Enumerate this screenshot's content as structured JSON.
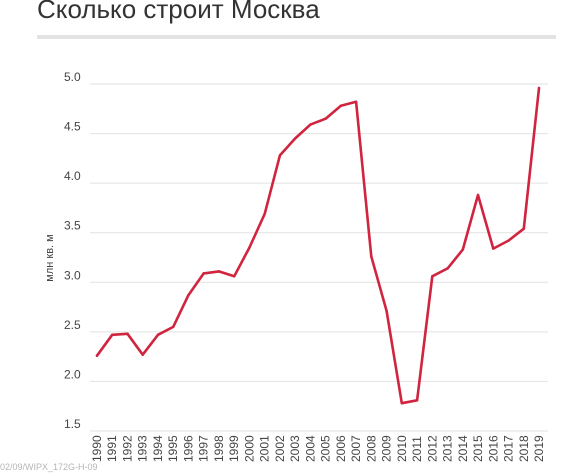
{
  "header": {
    "title": "Сколько строит Москва"
  },
  "watermark": "02/09/WIPX_172G-H-09",
  "chart_data": {
    "type": "line",
    "title": "Сколько строит Москва",
    "xlabel": "",
    "ylabel": "млн кв. м",
    "ylim": [
      1.5,
      5.0
    ],
    "yticks": [
      "1.5",
      "2.0",
      "2.5",
      "3.0",
      "3.5",
      "4.0",
      "4.5",
      "5.0"
    ],
    "grid": true,
    "line_color": "#d0243f",
    "x": [
      "1990",
      "1991",
      "1992",
      "1993",
      "1994",
      "1995",
      "1996",
      "1997",
      "1998",
      "1999",
      "2000",
      "2001",
      "2002",
      "2003",
      "2004",
      "2005",
      "2006",
      "2007",
      "2008",
      "2009",
      "2010",
      "2011",
      "2012",
      "2013",
      "2014",
      "2015",
      "2016",
      "2017",
      "2018",
      "2019"
    ],
    "series": [
      {
        "values": [
          2.26,
          2.47,
          2.48,
          2.27,
          2.47,
          2.55,
          2.87,
          3.09,
          3.11,
          3.06,
          3.35,
          3.69,
          4.28,
          4.45,
          4.59,
          4.65,
          4.78,
          4.82,
          3.26,
          2.71,
          1.78,
          1.81,
          3.06,
          3.14,
          3.33,
          3.88,
          3.34,
          3.42,
          3.54,
          4.96
        ]
      }
    ]
  }
}
